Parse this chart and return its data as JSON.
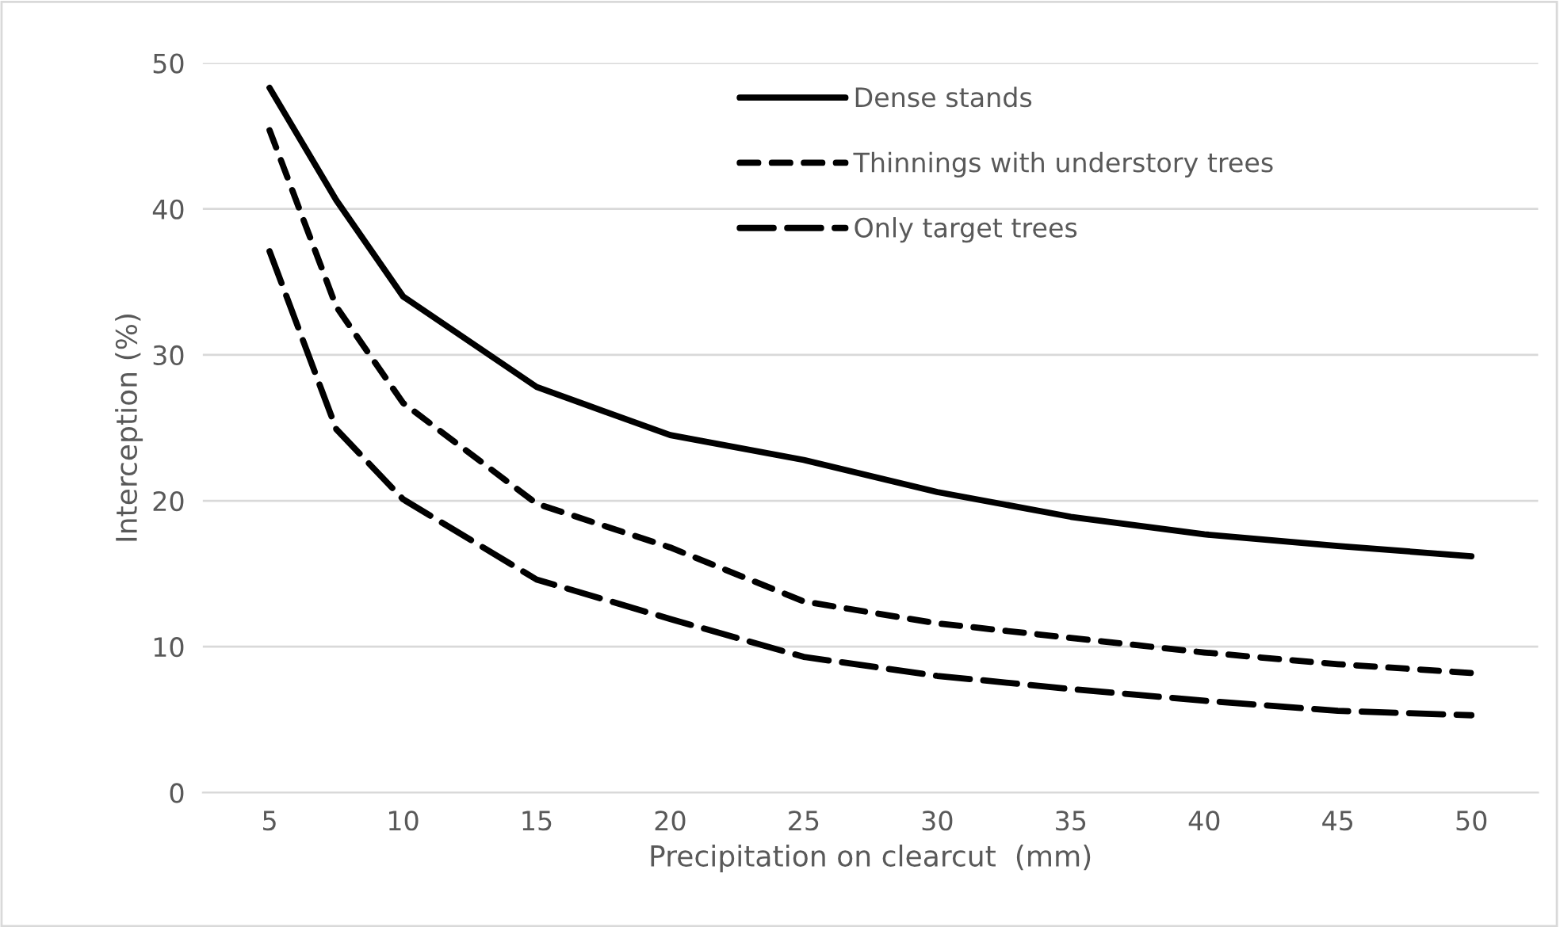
{
  "chart_data": {
    "type": "line",
    "xlabel": "Precipitation on clearcut  (mm)",
    "ylabel": "Interception (%)",
    "x": [
      5,
      7.5,
      10,
      15,
      20,
      25,
      30,
      35,
      40,
      45,
      50
    ],
    "xlim": [
      2.5,
      52.5
    ],
    "xticks": [
      5,
      10,
      15,
      20,
      25,
      30,
      35,
      40,
      45,
      50
    ],
    "ylim": [
      0,
      50
    ],
    "yticks": [
      0,
      10,
      20,
      30,
      40,
      50
    ],
    "grid": "y",
    "legend": "top right",
    "marker": "none",
    "series": [
      {
        "name": "Dense stands",
        "color": "#000000",
        "line_style": "solid",
        "values": [
          48.3,
          40.6,
          34.0,
          27.8,
          24.5,
          22.8,
          20.6,
          18.9,
          17.7,
          16.9,
          16.2
        ]
      },
      {
        "name": "Thinnings with understory trees",
        "color": "#000000",
        "line_style": "dashed",
        "values": [
          45.4,
          33.3,
          26.7,
          19.8,
          16.8,
          13.1,
          11.6,
          10.6,
          9.6,
          8.8,
          8.2
        ]
      },
      {
        "name": "Only target trees",
        "color": "#000000",
        "line_style": "dashed",
        "values": [
          37.1,
          24.9,
          20.1,
          14.6,
          11.9,
          9.3,
          8.0,
          7.1,
          6.3,
          5.6,
          5.3
        ]
      }
    ]
  }
}
